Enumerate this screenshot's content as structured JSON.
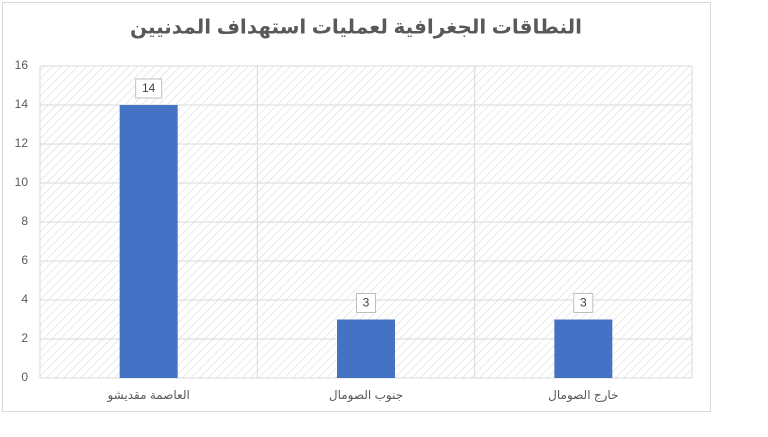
{
  "chart_data": {
    "type": "bar",
    "title": "النطاقات الجغرافية لعمليات استهداف المدنيين",
    "categories": [
      "العاصمة مقديشو",
      "جنوب الصومال",
      "خارج الصومال"
    ],
    "values": [
      14,
      3,
      3
    ],
    "color": "#4472c4",
    "ylim": [
      0,
      16
    ],
    "yticks": [
      0,
      2,
      4,
      6,
      8,
      10,
      12,
      14,
      16
    ],
    "grid": true
  }
}
